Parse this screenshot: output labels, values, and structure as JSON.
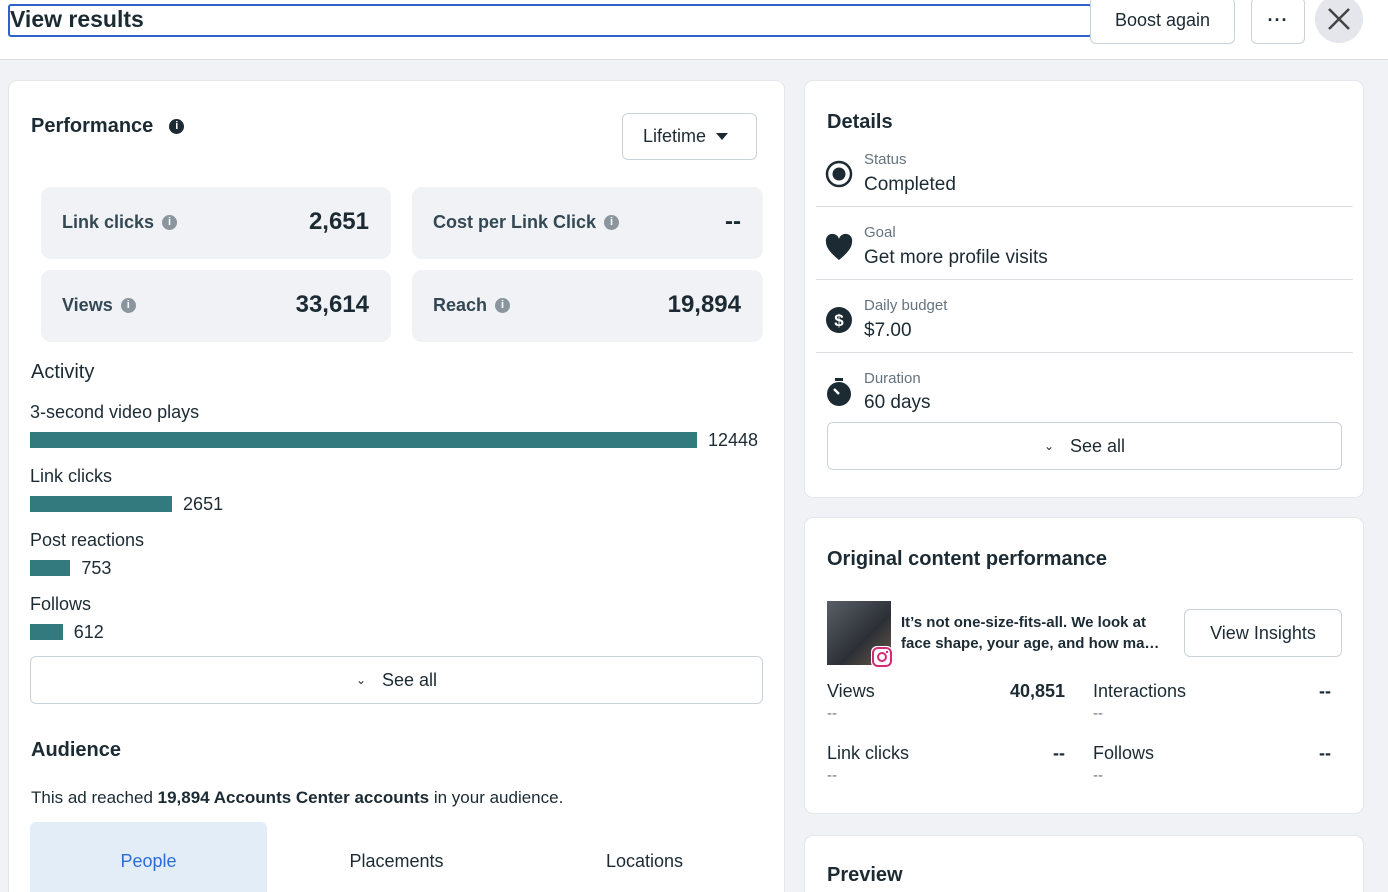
{
  "header": {
    "title": "View results",
    "boost": "Boost again"
  },
  "performance": {
    "title": "Performance",
    "period": "Lifetime",
    "metrics": [
      {
        "label": "Link clicks",
        "value": "2,651"
      },
      {
        "label": "Cost per Link Click",
        "value": "--"
      },
      {
        "label": "Views",
        "value": "33,614"
      },
      {
        "label": "Reach",
        "value": "19,894"
      }
    ]
  },
  "activity": {
    "title": "Activity",
    "items": [
      {
        "label": "3-second video plays",
        "value": 12448
      },
      {
        "label": "Link clicks",
        "value": 2651
      },
      {
        "label": "Post reactions",
        "value": 753
      },
      {
        "label": "Follows",
        "value": 612
      }
    ],
    "see_all": "See all"
  },
  "audience": {
    "title": "Audience",
    "before": "This ad reached",
    "highlight": "19,894 Accounts Center accounts",
    "after": "in your audience.",
    "tabs": [
      "People",
      "Placements",
      "Locations"
    ]
  },
  "details": {
    "title": "Details",
    "rows": [
      {
        "label": "Status",
        "value": "Completed"
      },
      {
        "label": "Goal",
        "value": "Get more profile visits"
      },
      {
        "label": "Daily budget",
        "value": "$7.00"
      },
      {
        "label": "Duration",
        "value": "60 days"
      }
    ],
    "see_all": "See all"
  },
  "original": {
    "title": "Original content performance",
    "caption": "It’s not one-size-fits-all. We look at face shape, your age, and how ma…",
    "button": "View Insights",
    "stats": [
      {
        "label": "Views",
        "value": "40,851",
        "sub": "--"
      },
      {
        "label": "Interactions",
        "value": "--",
        "sub": "--"
      },
      {
        "label": "Link clicks",
        "value": "--",
        "sub": "--"
      },
      {
        "label": "Follows",
        "value": "--",
        "sub": "--"
      }
    ]
  },
  "preview": {
    "title": "Preview"
  }
}
